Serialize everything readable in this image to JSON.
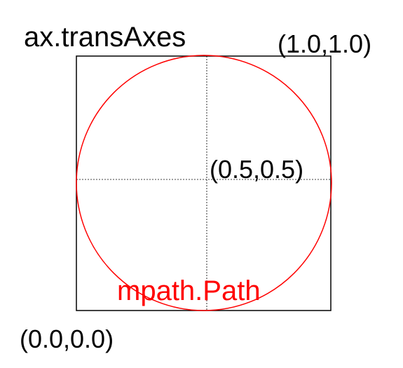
{
  "title": "ax.transAxes",
  "labels": {
    "top_right": "(1.0,1.0)",
    "center": "(0.5,0.5)",
    "bottom_left": "(0.0,0.0)",
    "path": "mpath.Path"
  },
  "colors": {
    "circle": "#ff0000",
    "path_label": "#ff0000",
    "box": "#000000",
    "crosshair": "#000000",
    "text": "#000000"
  }
}
